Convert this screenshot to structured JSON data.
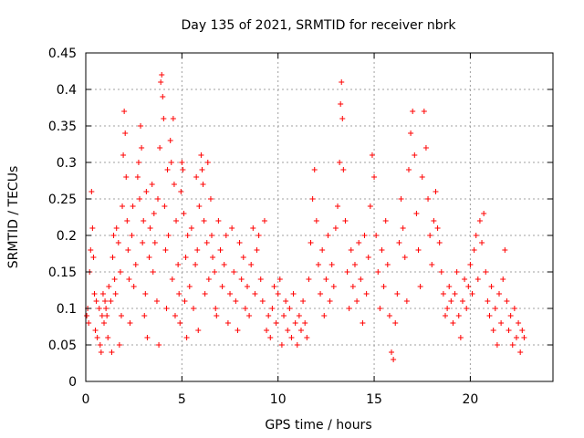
{
  "chart_data": {
    "type": "scatter",
    "title": "Day 135 of 2021, SRMTID for receiver nbrk",
    "xlabel": "GPS time / hours",
    "ylabel": "SRMTID / TECUs",
    "xlim": [
      0,
      24.3
    ],
    "ylim": [
      0,
      0.45
    ],
    "xticks": [
      0,
      5,
      10,
      15,
      20
    ],
    "xtick_labels": [
      "0",
      "5",
      "10",
      "15",
      "20"
    ],
    "yticks": [
      0,
      0.05,
      0.1,
      0.15,
      0.2,
      0.25,
      0.3,
      0.35,
      0.4,
      0.45
    ],
    "ytick_labels": [
      "0",
      "0.05",
      "0.1",
      "0.15",
      "0.2",
      "0.25",
      "0.3",
      "0.35",
      "0.4",
      "0.45"
    ],
    "grid": true,
    "marker": "+",
    "color": "#ff0000",
    "series": [
      {
        "name": "SRMTID",
        "points": [
          [
            0.05,
            0.09
          ],
          [
            0.1,
            0.1
          ],
          [
            0.15,
            0.08
          ],
          [
            0.2,
            0.15
          ],
          [
            0.25,
            0.18
          ],
          [
            0.3,
            0.26
          ],
          [
            0.35,
            0.21
          ],
          [
            0.4,
            0.17
          ],
          [
            0.45,
            0.12
          ],
          [
            0.5,
            0.07
          ],
          [
            0.55,
            0.11
          ],
          [
            0.6,
            0.06
          ],
          [
            0.7,
            0.1
          ],
          [
            0.75,
            0.05
          ],
          [
            0.8,
            0.04
          ],
          [
            0.85,
            0.09
          ],
          [
            0.9,
            0.12
          ],
          [
            0.95,
            0.08
          ],
          [
            1.0,
            0.11
          ],
          [
            1.05,
            0.1
          ],
          [
            1.1,
            0.09
          ],
          [
            1.15,
            0.06
          ],
          [
            1.2,
            0.13
          ],
          [
            1.3,
            0.11
          ],
          [
            1.35,
            0.04
          ],
          [
            1.4,
            0.17
          ],
          [
            1.45,
            0.2
          ],
          [
            1.5,
            0.14
          ],
          [
            1.55,
            0.12
          ],
          [
            1.6,
            0.21
          ],
          [
            1.7,
            0.19
          ],
          [
            1.75,
            0.05
          ],
          [
            1.8,
            0.15
          ],
          [
            1.85,
            0.09
          ],
          [
            1.9,
            0.24
          ],
          [
            1.95,
            0.31
          ],
          [
            2.0,
            0.37
          ],
          [
            2.05,
            0.34
          ],
          [
            2.1,
            0.28
          ],
          [
            2.15,
            0.22
          ],
          [
            2.2,
            0.18
          ],
          [
            2.25,
            0.14
          ],
          [
            2.3,
            0.08
          ],
          [
            2.4,
            0.2
          ],
          [
            2.45,
            0.24
          ],
          [
            2.5,
            0.13
          ],
          [
            2.6,
            0.16
          ],
          [
            2.7,
            0.28
          ],
          [
            2.75,
            0.3
          ],
          [
            2.8,
            0.25
          ],
          [
            2.85,
            0.35
          ],
          [
            2.9,
            0.32
          ],
          [
            2.95,
            0.19
          ],
          [
            3.0,
            0.22
          ],
          [
            3.05,
            0.09
          ],
          [
            3.1,
            0.12
          ],
          [
            3.15,
            0.26
          ],
          [
            3.2,
            0.06
          ],
          [
            3.3,
            0.17
          ],
          [
            3.35,
            0.21
          ],
          [
            3.45,
            0.27
          ],
          [
            3.5,
            0.15
          ],
          [
            3.55,
            0.23
          ],
          [
            3.6,
            0.19
          ],
          [
            3.7,
            0.11
          ],
          [
            3.75,
            0.25
          ],
          [
            3.8,
            0.05
          ],
          [
            3.85,
            0.32
          ],
          [
            3.9,
            0.41
          ],
          [
            3.95,
            0.42
          ],
          [
            4.0,
            0.39
          ],
          [
            4.05,
            0.36
          ],
          [
            4.1,
            0.24
          ],
          [
            4.15,
            0.18
          ],
          [
            4.2,
            0.1
          ],
          [
            4.25,
            0.29
          ],
          [
            4.3,
            0.2
          ],
          [
            4.4,
            0.33
          ],
          [
            4.45,
            0.3
          ],
          [
            4.5,
            0.14
          ],
          [
            4.55,
            0.36
          ],
          [
            4.6,
            0.27
          ],
          [
            4.65,
            0.09
          ],
          [
            4.7,
            0.22
          ],
          [
            4.8,
            0.16
          ],
          [
            4.85,
            0.12
          ],
          [
            4.9,
            0.08
          ],
          [
            4.95,
            0.26
          ],
          [
            5.0,
            0.3
          ],
          [
            5.05,
            0.29
          ],
          [
            5.1,
            0.23
          ],
          [
            5.15,
            0.11
          ],
          [
            5.2,
            0.17
          ],
          [
            5.25,
            0.06
          ],
          [
            5.3,
            0.2
          ],
          [
            5.4,
            0.13
          ],
          [
            5.5,
            0.21
          ],
          [
            5.6,
            0.1
          ],
          [
            5.7,
            0.16
          ],
          [
            5.75,
            0.28
          ],
          [
            5.8,
            0.18
          ],
          [
            5.85,
            0.07
          ],
          [
            5.9,
            0.24
          ],
          [
            6.0,
            0.31
          ],
          [
            6.05,
            0.29
          ],
          [
            6.1,
            0.27
          ],
          [
            6.15,
            0.22
          ],
          [
            6.2,
            0.12
          ],
          [
            6.3,
            0.19
          ],
          [
            6.35,
            0.3
          ],
          [
            6.4,
            0.14
          ],
          [
            6.5,
            0.25
          ],
          [
            6.55,
            0.2
          ],
          [
            6.6,
            0.17
          ],
          [
            6.7,
            0.15
          ],
          [
            6.75,
            0.1
          ],
          [
            6.8,
            0.09
          ],
          [
            6.9,
            0.22
          ],
          [
            7.0,
            0.18
          ],
          [
            7.1,
            0.13
          ],
          [
            7.2,
            0.16
          ],
          [
            7.3,
            0.2
          ],
          [
            7.4,
            0.08
          ],
          [
            7.5,
            0.12
          ],
          [
            7.6,
            0.21
          ],
          [
            7.7,
            0.15
          ],
          [
            7.8,
            0.11
          ],
          [
            7.9,
            0.07
          ],
          [
            8.0,
            0.19
          ],
          [
            8.1,
            0.14
          ],
          [
            8.2,
            0.17
          ],
          [
            8.3,
            0.1
          ],
          [
            8.4,
            0.13
          ],
          [
            8.5,
            0.09
          ],
          [
            8.6,
            0.16
          ],
          [
            8.7,
            0.21
          ],
          [
            8.8,
            0.12
          ],
          [
            8.9,
            0.18
          ],
          [
            9.0,
            0.2
          ],
          [
            9.1,
            0.14
          ],
          [
            9.2,
            0.11
          ],
          [
            9.3,
            0.22
          ],
          [
            9.4,
            0.07
          ],
          [
            9.5,
            0.09
          ],
          [
            9.6,
            0.06
          ],
          [
            9.7,
            0.1
          ],
          [
            9.8,
            0.13
          ],
          [
            9.9,
            0.08
          ],
          [
            10.0,
            0.12
          ],
          [
            10.1,
            0.14
          ],
          [
            10.2,
            0.05
          ],
          [
            10.3,
            0.09
          ],
          [
            10.4,
            0.11
          ],
          [
            10.5,
            0.07
          ],
          [
            10.6,
            0.1
          ],
          [
            10.7,
            0.06
          ],
          [
            10.8,
            0.12
          ],
          [
            10.9,
            0.08
          ],
          [
            11.0,
            0.05
          ],
          [
            11.1,
            0.09
          ],
          [
            11.2,
            0.07
          ],
          [
            11.3,
            0.11
          ],
          [
            11.4,
            0.08
          ],
          [
            11.5,
            0.06
          ],
          [
            11.6,
            0.14
          ],
          [
            11.7,
            0.19
          ],
          [
            11.8,
            0.25
          ],
          [
            11.9,
            0.29
          ],
          [
            12.0,
            0.22
          ],
          [
            12.1,
            0.16
          ],
          [
            12.2,
            0.12
          ],
          [
            12.3,
            0.18
          ],
          [
            12.4,
            0.09
          ],
          [
            12.5,
            0.14
          ],
          [
            12.6,
            0.2
          ],
          [
            12.7,
            0.11
          ],
          [
            12.8,
            0.16
          ],
          [
            12.9,
            0.13
          ],
          [
            13.0,
            0.21
          ],
          [
            13.1,
            0.24
          ],
          [
            13.2,
            0.3
          ],
          [
            13.25,
            0.38
          ],
          [
            13.3,
            0.41
          ],
          [
            13.35,
            0.36
          ],
          [
            13.4,
            0.29
          ],
          [
            13.5,
            0.22
          ],
          [
            13.6,
            0.15
          ],
          [
            13.7,
            0.1
          ],
          [
            13.8,
            0.18
          ],
          [
            13.9,
            0.13
          ],
          [
            14.0,
            0.16
          ],
          [
            14.1,
            0.11
          ],
          [
            14.2,
            0.19
          ],
          [
            14.3,
            0.14
          ],
          [
            14.4,
            0.08
          ],
          [
            14.5,
            0.2
          ],
          [
            14.6,
            0.12
          ],
          [
            14.7,
            0.17
          ],
          [
            14.8,
            0.24
          ],
          [
            14.9,
            0.31
          ],
          [
            15.0,
            0.28
          ],
          [
            15.1,
            0.2
          ],
          [
            15.2,
            0.15
          ],
          [
            15.3,
            0.1
          ],
          [
            15.4,
            0.18
          ],
          [
            15.5,
            0.13
          ],
          [
            15.6,
            0.22
          ],
          [
            15.7,
            0.16
          ],
          [
            15.8,
            0.09
          ],
          [
            15.9,
            0.04
          ],
          [
            16.0,
            0.03
          ],
          [
            16.1,
            0.08
          ],
          [
            16.2,
            0.12
          ],
          [
            16.3,
            0.19
          ],
          [
            16.4,
            0.25
          ],
          [
            16.5,
            0.21
          ],
          [
            16.6,
            0.17
          ],
          [
            16.7,
            0.11
          ],
          [
            16.8,
            0.29
          ],
          [
            16.9,
            0.34
          ],
          [
            17.0,
            0.37
          ],
          [
            17.1,
            0.31
          ],
          [
            17.2,
            0.23
          ],
          [
            17.3,
            0.18
          ],
          [
            17.4,
            0.13
          ],
          [
            17.5,
            0.28
          ],
          [
            17.6,
            0.37
          ],
          [
            17.7,
            0.32
          ],
          [
            17.8,
            0.25
          ],
          [
            17.9,
            0.2
          ],
          [
            18.0,
            0.16
          ],
          [
            18.1,
            0.22
          ],
          [
            18.2,
            0.26
          ],
          [
            18.3,
            0.21
          ],
          [
            18.4,
            0.19
          ],
          [
            18.5,
            0.15
          ],
          [
            18.6,
            0.12
          ],
          [
            18.7,
            0.09
          ],
          [
            18.8,
            0.1
          ],
          [
            18.9,
            0.13
          ],
          [
            19.0,
            0.11
          ],
          [
            19.1,
            0.08
          ],
          [
            19.2,
            0.12
          ],
          [
            19.3,
            0.15
          ],
          [
            19.4,
            0.09
          ],
          [
            19.5,
            0.06
          ],
          [
            19.6,
            0.11
          ],
          [
            19.7,
            0.14
          ],
          [
            19.8,
            0.1
          ],
          [
            19.9,
            0.13
          ],
          [
            20.0,
            0.16
          ],
          [
            20.1,
            0.12
          ],
          [
            20.2,
            0.18
          ],
          [
            20.3,
            0.2
          ],
          [
            20.4,
            0.14
          ],
          [
            20.5,
            0.22
          ],
          [
            20.6,
            0.19
          ],
          [
            20.7,
            0.23
          ],
          [
            20.8,
            0.15
          ],
          [
            20.9,
            0.11
          ],
          [
            21.0,
            0.09
          ],
          [
            21.1,
            0.13
          ],
          [
            21.2,
            0.07
          ],
          [
            21.3,
            0.1
          ],
          [
            21.4,
            0.05
          ],
          [
            21.5,
            0.12
          ],
          [
            21.6,
            0.08
          ],
          [
            21.7,
            0.14
          ],
          [
            21.8,
            0.18
          ],
          [
            21.9,
            0.11
          ],
          [
            22.0,
            0.07
          ],
          [
            22.1,
            0.09
          ],
          [
            22.2,
            0.05
          ],
          [
            22.3,
            0.1
          ],
          [
            22.4,
            0.06
          ],
          [
            22.5,
            0.08
          ],
          [
            22.6,
            0.04
          ],
          [
            22.7,
            0.07
          ],
          [
            22.8,
            0.06
          ]
        ]
      }
    ]
  }
}
